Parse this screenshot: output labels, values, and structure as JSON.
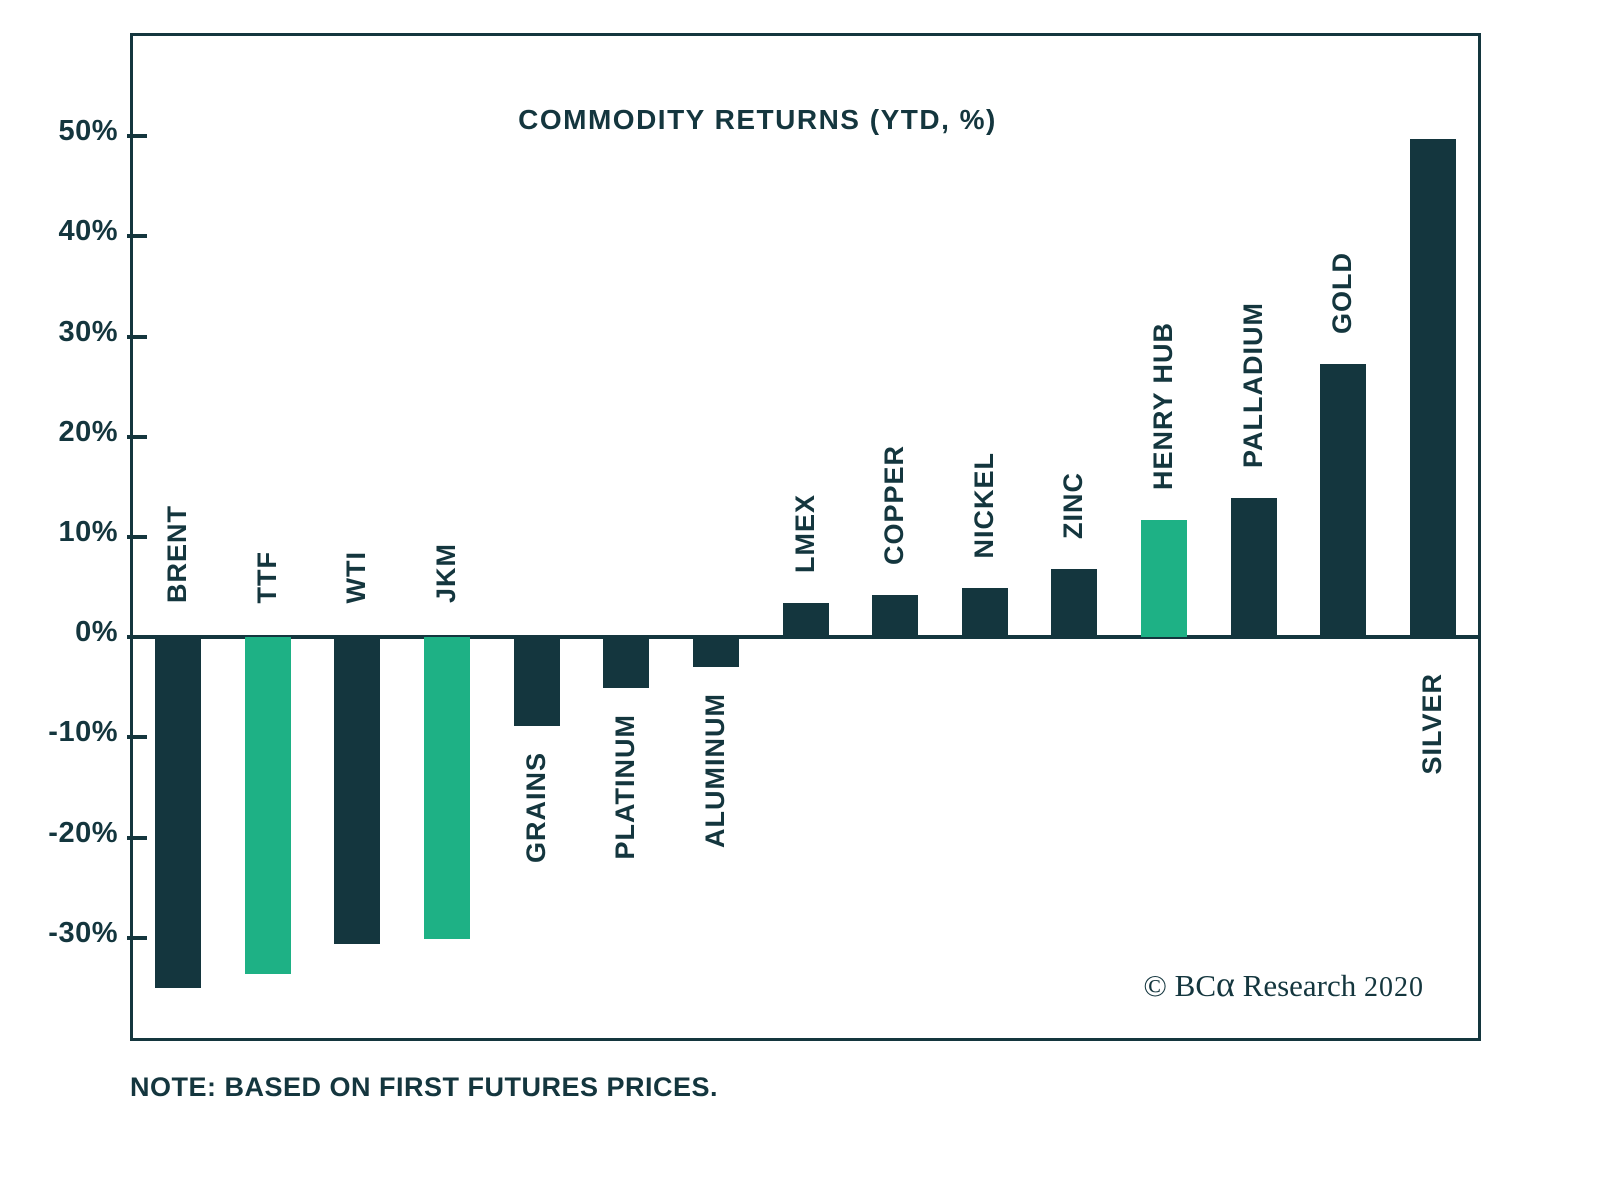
{
  "page": {
    "background": "#ffffff"
  },
  "chart_data": {
    "type": "bar",
    "title": "COMMODITY RETURNS (YTD, %)",
    "xlabel": "",
    "ylabel": "",
    "ylim": [
      -40,
      60
    ],
    "grid": false,
    "zero_line": true,
    "legend": "none",
    "yticks": [
      {
        "value": 50,
        "label": "50%"
      },
      {
        "value": 40,
        "label": "40%"
      },
      {
        "value": 30,
        "label": "30%"
      },
      {
        "value": 20,
        "label": "20%"
      },
      {
        "value": 10,
        "label": "10%"
      },
      {
        "value": 0,
        "label": "0%"
      },
      {
        "value": -10,
        "label": "-10%"
      },
      {
        "value": -20,
        "label": "-20%"
      },
      {
        "value": -30,
        "label": "-30%"
      }
    ],
    "categories": [
      "BRENT",
      "TTF",
      "WTI",
      "JKM",
      "GRAINS",
      "PLATINUM",
      "ALUMINUM",
      "LMEX",
      "COPPER",
      "NICKEL",
      "ZINC",
      "HENRY HUB",
      "PALLADIUM",
      "GOLD",
      "SILVER"
    ],
    "values": [
      -35.0,
      -33.6,
      -30.6,
      -30.1,
      -8.9,
      -5.1,
      -3.0,
      3.4,
      4.2,
      4.9,
      6.8,
      11.7,
      13.9,
      27.3,
      49.7
    ],
    "bar_colors": [
      "dark",
      "green",
      "dark",
      "green",
      "dark",
      "dark",
      "dark",
      "dark",
      "dark",
      "dark",
      "dark",
      "green",
      "dark",
      "dark",
      "dark"
    ],
    "label_positions": [
      "above_zero",
      "above_zero",
      "above_zero",
      "above_zero",
      "below_bar",
      "below_bar",
      "below_bar",
      "above_bar",
      "above_bar",
      "above_bar",
      "above_bar",
      "above_bar",
      "above_bar",
      "above_bar",
      "below_zero"
    ],
    "colors": {
      "dark": "#14363E",
      "green": "#1EB185"
    }
  },
  "annotations": {
    "note": "NOTE: BASED ON FIRST FUTURES PRICES.",
    "copyright_prefix": "© BC",
    "copyright_alpha": "α",
    "copyright_suffix": " Research ",
    "copyright_year": "2020"
  }
}
